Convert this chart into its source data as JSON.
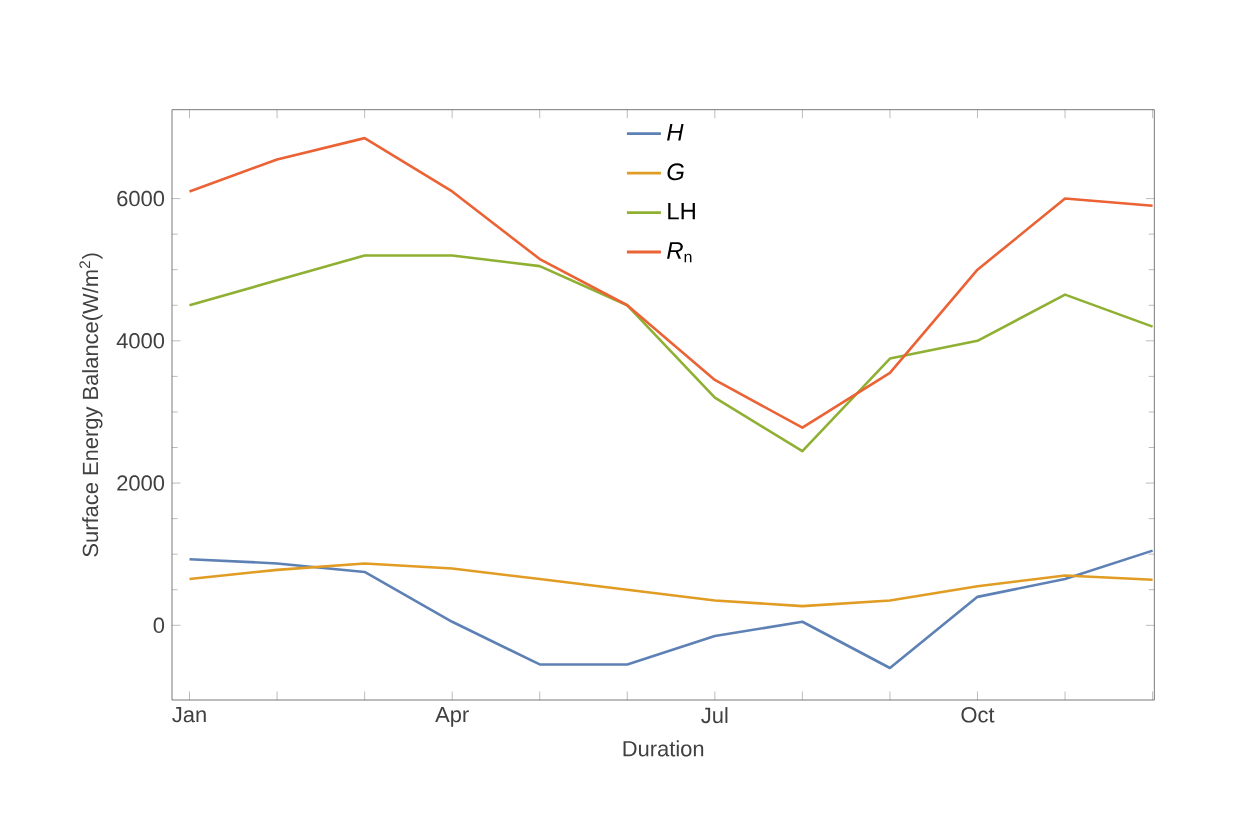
{
  "chart_data": {
    "type": "line",
    "xlabel": "Duration",
    "ylabel": "Surface Energy Balance(W/m$^{2}$)",
    "categories": [
      "Jan",
      null,
      null,
      "Apr",
      null,
      null,
      "Jul",
      null,
      null,
      "Oct",
      null,
      null
    ],
    "series": [
      {
        "name": "*H*",
        "color": "#5e81b5",
        "values": [
          930,
          870,
          750,
          50,
          -550,
          -550,
          -150,
          50,
          -600,
          400,
          650,
          1050
        ]
      },
      {
        "name": "*G*",
        "color": "#e19c24",
        "values": [
          650,
          780,
          870,
          800,
          650,
          500,
          350,
          270,
          350,
          550,
          700,
          640
        ]
      },
      {
        "name": "LH",
        "color": "#8fb032",
        "values": [
          4500,
          4850,
          5200,
          5200,
          5050,
          4500,
          3200,
          2450,
          3750,
          4000,
          4650,
          4200
        ]
      },
      {
        "name": "*R*$_{n}$",
        "color": "#eb6235",
        "values": [
          6100,
          6550,
          6850,
          6100,
          5150,
          4500,
          3450,
          2780,
          3550,
          5000,
          6000,
          5900
        ]
      }
    ],
    "ylim": [
      -1050,
      7250
    ],
    "yticks": [
      0,
      2000,
      4000,
      6000
    ],
    "legend": "top",
    "grid": false,
    "marker": "none",
    "line_style": "solid"
  }
}
